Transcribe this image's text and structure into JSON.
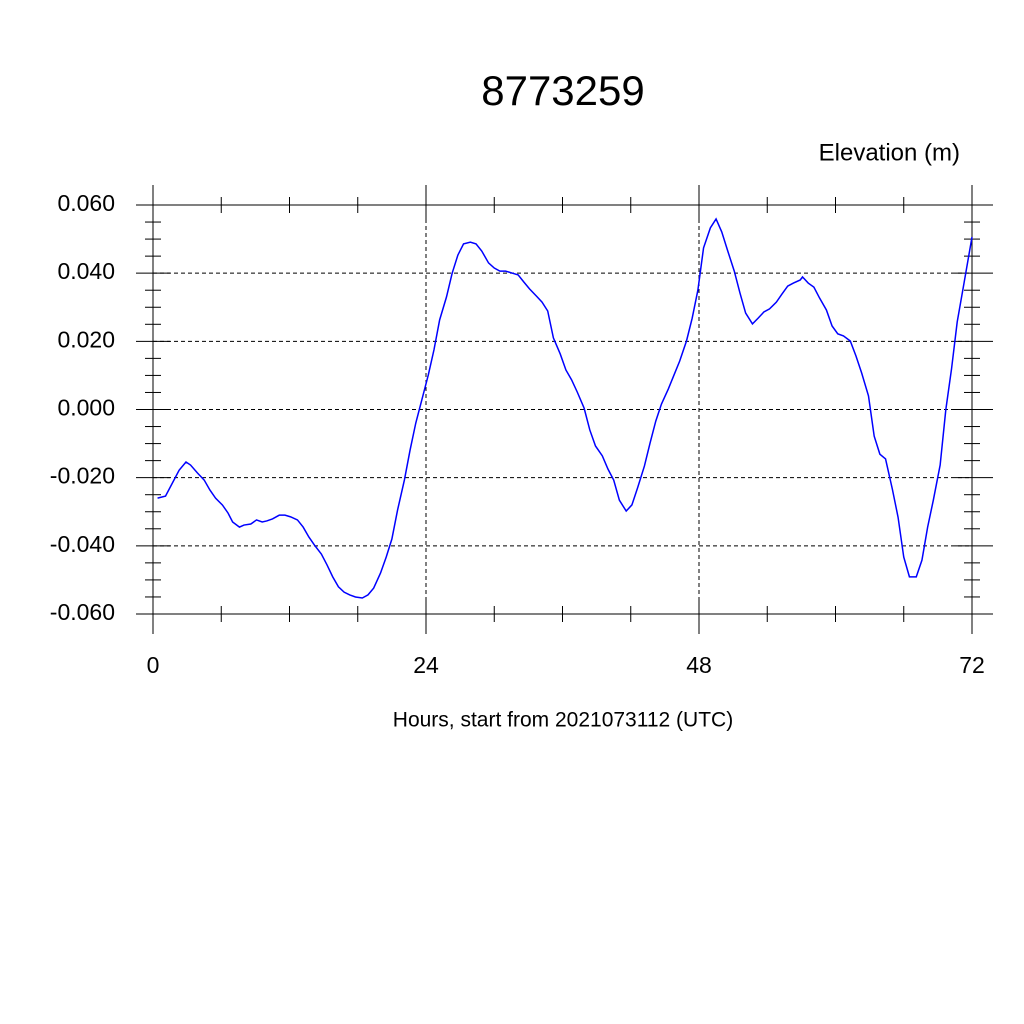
{
  "chart_data": {
    "type": "line",
    "title": "8773259",
    "y_label": "Elevation (m)",
    "x_label": "Hours, start from 2021073112 (UTC)",
    "xlim": [
      0,
      72
    ],
    "xticks": [
      0,
      24,
      48,
      72
    ],
    "ylim": [
      -0.06,
      0.06
    ],
    "yticks": [
      {
        "value": -0.06,
        "label": "-0.060"
      },
      {
        "value": -0.04,
        "label": "-0.040"
      },
      {
        "value": -0.02,
        "label": "-0.020"
      },
      {
        "value": 0,
        "label": "0.000"
      },
      {
        "value": 0.02,
        "label": "0.020"
      },
      {
        "value": 0.04,
        "label": "0.040"
      },
      {
        "value": 0.06,
        "label": "0.060"
      }
    ],
    "grid": true,
    "x": [
      0.4,
      1.1,
      1.7,
      2.3,
      2.9,
      3.3,
      3.9,
      4.5,
      5.0,
      5.5,
      6.1,
      6.6,
      7.0,
      7.6,
      8.0,
      8.6,
      9.1,
      9.6,
      10.0,
      10.5,
      11.1,
      11.6,
      12.1,
      12.7,
      13.2,
      13.7,
      14.2,
      14.8,
      15.3,
      15.8,
      16.3,
      16.8,
      17.3,
      17.8,
      18.4,
      18.9,
      19.4,
      20.0,
      20.5,
      21.0,
      21.5,
      22.1,
      22.6,
      23.1,
      23.7,
      24.2,
      24.7,
      25.2,
      25.8,
      26.3,
      26.8,
      27.3,
      27.9,
      28.4,
      28.9,
      29.5,
      30.0,
      30.5,
      31.0,
      31.6,
      32.1,
      32.6,
      33.1,
      33.7,
      34.2,
      34.7,
      35.2,
      35.8,
      36.3,
      36.8,
      37.3,
      37.9,
      38.4,
      38.9,
      39.5,
      40.0,
      40.5,
      41.0,
      41.6,
      42.1,
      42.6,
      43.2,
      43.7,
      44.2,
      44.7,
      45.3,
      45.8,
      46.3,
      46.9,
      47.4,
      47.9,
      48.4,
      49.0,
      49.5,
      50.0,
      50.5,
      51.1,
      51.6,
      52.1,
      52.7,
      53.2,
      53.7,
      54.2,
      54.8,
      55.3,
      55.8,
      56.3,
      56.9,
      57.1,
      57.6,
      58.1,
      58.6,
      59.2,
      59.7,
      60.2,
      60.7,
      61.3,
      61.8,
      62.3,
      62.9,
      63.4,
      63.9,
      64.4,
      65.0,
      65.5,
      66.0,
      66.5,
      67.1,
      67.6,
      68.1,
      68.6,
      69.2,
      69.7,
      70.2,
      70.7,
      71.3,
      72.0
    ],
    "series": [
      {
        "color": "#0000ff",
        "values": [
          -0.026,
          -0.0254,
          -0.0216,
          -0.0178,
          -0.0154,
          -0.0163,
          -0.0186,
          -0.0207,
          -0.0236,
          -0.026,
          -0.028,
          -0.0304,
          -0.033,
          -0.0345,
          -0.0339,
          -0.0336,
          -0.0324,
          -0.033,
          -0.0327,
          -0.0321,
          -0.031,
          -0.031,
          -0.0315,
          -0.0324,
          -0.0345,
          -0.0374,
          -0.0398,
          -0.0424,
          -0.0456,
          -0.0491,
          -0.052,
          -0.0536,
          -0.0544,
          -0.055,
          -0.0553,
          -0.0544,
          -0.0524,
          -0.048,
          -0.0433,
          -0.038,
          -0.0295,
          -0.0207,
          -0.0119,
          -0.004,
          0.0037,
          0.0101,
          0.0175,
          0.0263,
          0.033,
          0.04,
          0.0453,
          0.0486,
          0.0491,
          0.0486,
          0.0465,
          0.043,
          0.0415,
          0.0406,
          0.0406,
          0.04,
          0.0395,
          0.0374,
          0.0354,
          0.0333,
          0.0315,
          0.0289,
          0.021,
          0.0163,
          0.0116,
          0.0087,
          0.0051,
          0.0004,
          -0.006,
          -0.0107,
          -0.0136,
          -0.0175,
          -0.0207,
          -0.0266,
          -0.0298,
          -0.028,
          -0.023,
          -0.0166,
          -0.0098,
          -0.0034,
          0.0016,
          0.006,
          0.0101,
          0.0142,
          0.0201,
          0.0268,
          0.035,
          0.0474,
          0.0533,
          0.0559,
          0.0521,
          0.0468,
          0.0406,
          0.0342,
          0.0283,
          0.0251,
          0.0268,
          0.0286,
          0.0295,
          0.0315,
          0.0339,
          0.0362,
          0.0371,
          0.038,
          0.0389,
          0.0371,
          0.0359,
          0.0327,
          0.0292,
          0.0245,
          0.0222,
          0.0216,
          0.0201,
          0.0157,
          0.0107,
          0.004,
          -0.0078,
          -0.0131,
          -0.0145,
          -0.0234,
          -0.0316,
          -0.0433,
          -0.0491,
          -0.0491,
          -0.0442,
          -0.0345,
          -0.0266,
          -0.0163,
          0.0,
          0.0119,
          0.0257,
          0.0371,
          0.0506
        ]
      }
    ]
  }
}
